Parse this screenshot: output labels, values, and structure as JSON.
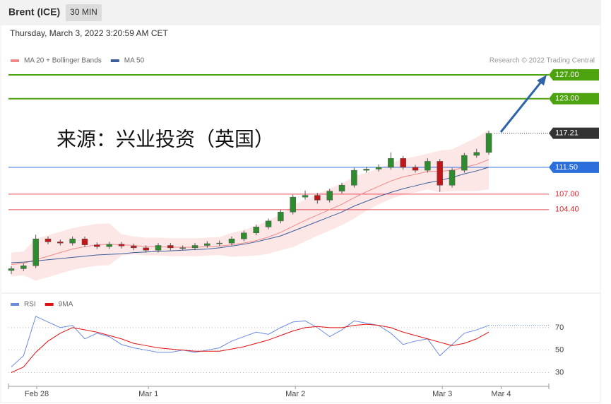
{
  "header": {
    "title": "Brent (ICE)",
    "interval": "30 MIN",
    "timestamp": "Thursday, March 3, 2022 3:20:59 AM CET"
  },
  "chart_data": [
    {
      "type": "candlestick",
      "attribution": "Research © 2022 Trading Central",
      "annotation": "来源：兴业投资（英国）",
      "open": [
        94.2,
        94.5,
        95,
        99.5,
        99,
        98.8,
        99.5,
        98.5,
        98.2,
        98.6,
        98.3,
        98,
        97.6,
        98.4,
        98,
        98,
        98.4,
        98.7,
        98.8,
        99.5,
        100.5,
        101.5,
        102.5,
        104,
        106.5,
        106.8,
        106,
        107.5,
        108.5,
        111,
        111.2,
        111.5,
        113,
        111.5,
        111,
        112.5,
        108.5,
        111,
        113.5,
        114
      ],
      "high": [
        94.9,
        95.4,
        100.2,
        99.9,
        99.4,
        99.9,
        99.9,
        98.9,
        99.0,
        99.0,
        98.7,
        98.4,
        98.8,
        98.8,
        98.4,
        98.8,
        99.1,
        99.2,
        99.9,
        100.9,
        101.9,
        102.9,
        104.4,
        106.9,
        107.6,
        107.2,
        107.9,
        108.9,
        111.4,
        111.6,
        112.0,
        114.0,
        113.4,
        111.9,
        113.0,
        112.9,
        111.4,
        113.9,
        114.6,
        117.6
      ],
      "low": [
        93.6,
        94.1,
        94.6,
        98.6,
        98.4,
        98.4,
        98.1,
        97.8,
        97.8,
        97.9,
        97.6,
        97.2,
        97.2,
        97.6,
        97.6,
        97.6,
        98.0,
        98.3,
        98.4,
        99.1,
        100.1,
        101.1,
        102.1,
        103.6,
        106.1,
        105.4,
        105.6,
        107.1,
        108.1,
        110.6,
        110.8,
        111.1,
        111.1,
        110.6,
        110.6,
        107.4,
        108.1,
        110.6,
        113.1,
        113.6
      ],
      "close": [
        94.5,
        95,
        99.5,
        99,
        98.8,
        99.5,
        98.5,
        98.2,
        98.6,
        98.3,
        98,
        97.6,
        98.4,
        98,
        98,
        98.4,
        98.7,
        98.8,
        99.5,
        100.5,
        101.5,
        102.5,
        104,
        106.5,
        106.8,
        106,
        107.5,
        108.5,
        111,
        111.2,
        111.5,
        113,
        111.5,
        111,
        112.5,
        108.5,
        111,
        113.5,
        114,
        117.2
      ],
      "up_color": "#2e8b2e",
      "down_color": "#c0161a",
      "series": [
        {
          "name": "MA 20 + Bollinger Bands",
          "color": "#f08a8a",
          "band_color": "rgba(250,200,200,0.45)",
          "values": [
            95.2,
            95.4,
            96.0,
            96.6,
            97.2,
            97.8,
            98.2,
            98.5,
            98.6,
            98.5,
            98.4,
            98.2,
            98.2,
            98.1,
            98.1,
            98.1,
            98.2,
            98.3,
            98.5,
            98.8,
            99.2,
            99.8,
            100.6,
            101.6,
            102.6,
            103.5,
            104.4,
            105.3,
            106.4,
            107.4,
            108.3,
            109.2,
            109.9,
            110.3,
            110.8,
            110.8,
            111.0,
            111.5,
            112.0,
            112.8
          ],
          "upper": [
            97.2,
            97.4,
            99.5,
            100.1,
            100.7,
            101.3,
            101.7,
            102.0,
            102.1,
            100.3,
            99.9,
            99.7,
            99.7,
            99.6,
            99.6,
            99.6,
            99.7,
            99.8,
            100.5,
            101.0,
            101.7,
            102.6,
            103.6,
            105.1,
            106.1,
            107.0,
            107.9,
            108.8,
            109.9,
            110.6,
            111.3,
            112.2,
            112.9,
            113.3,
            113.8,
            114.3,
            114.5,
            115.5,
            116.5,
            117.8
          ],
          "lower": [
            93.2,
            93.4,
            92.5,
            93.1,
            93.7,
            94.3,
            94.7,
            95.0,
            95.1,
            96.7,
            96.9,
            96.7,
            96.7,
            96.6,
            96.6,
            96.6,
            96.7,
            96.8,
            96.5,
            96.6,
            96.7,
            97.0,
            97.6,
            98.1,
            99.1,
            100.0,
            100.9,
            101.8,
            102.9,
            104.2,
            105.3,
            106.2,
            106.9,
            107.3,
            107.8,
            107.3,
            107.5,
            107.5,
            107.5,
            107.8
          ]
        },
        {
          "name": "MA 50",
          "color": "#3b5f9a",
          "values": [
            95.5,
            95.6,
            95.8,
            96.0,
            96.2,
            96.4,
            96.6,
            96.8,
            96.9,
            97.0,
            97.2,
            97.3,
            97.4,
            97.5,
            97.6,
            97.7,
            97.8,
            98.0,
            98.3,
            98.6,
            99.0,
            99.5,
            100.0,
            100.8,
            101.6,
            102.4,
            103.2,
            104.0,
            105.0,
            105.8,
            106.6,
            107.3,
            107.9,
            108.4,
            108.9,
            109.3,
            109.8,
            110.4,
            110.9,
            111.5
          ]
        }
      ],
      "levels": [
        {
          "value": 127,
          "label": "127.00",
          "color": "#4ca30d",
          "line": "solid",
          "tag": "box"
        },
        {
          "value": 123,
          "label": "123.00",
          "color": "#4ca30d",
          "line": "solid",
          "tag": "box"
        },
        {
          "value": 117.21,
          "label": "117.21",
          "color": "#333333",
          "line": "dotted",
          "tag": "box"
        },
        {
          "value": 111.5,
          "label": "111.50",
          "color": "#2a6fdb",
          "line": "solid",
          "tag": "box"
        },
        {
          "value": 107,
          "label": "107.00",
          "color": "#e0202a",
          "line": "solid",
          "tag": "text"
        },
        {
          "value": 104.4,
          "label": "104.40",
          "color": "#e0202a",
          "line": "solid",
          "tag": "text"
        }
      ],
      "ylim": [
        91,
        128.3
      ],
      "xlim": [
        -0.23,
        43.9
      ],
      "xticks": [
        {
          "value": 2.08,
          "label": "Feb 28"
        },
        {
          "value": 11.2,
          "label": "Mar 1"
        },
        {
          "value": 23.2,
          "label": "Mar 2"
        },
        {
          "value": 35.2,
          "label": "Mar 3"
        },
        {
          "value": 40,
          "label": "Mar 4"
        }
      ]
    },
    {
      "type": "line",
      "series": [
        {
          "name": "RSI",
          "color": "#6b8ae0",
          "values": [
            35,
            45,
            80,
            75,
            70,
            72,
            60,
            65,
            62,
            55,
            52,
            50,
            48,
            48,
            50,
            48,
            50,
            52,
            58,
            62,
            66,
            64,
            70,
            75,
            76,
            70,
            62,
            68,
            76,
            74,
            72,
            65,
            55,
            58,
            60,
            45,
            55,
            65,
            68,
            72
          ]
        },
        {
          "name": "9MA",
          "color": "#e01010",
          "values": [
            30,
            35,
            48,
            58,
            65,
            70,
            68,
            66,
            63,
            60,
            56,
            54,
            52,
            51,
            50,
            49,
            49,
            49,
            51,
            53,
            56,
            59,
            63,
            67,
            70,
            71,
            70,
            70,
            72,
            73,
            72,
            70,
            66,
            63,
            60,
            57,
            54,
            56,
            60,
            66
          ]
        }
      ],
      "ylim": [
        19,
        85
      ],
      "yticks": [
        30,
        50,
        70
      ],
      "grid": true
    }
  ]
}
